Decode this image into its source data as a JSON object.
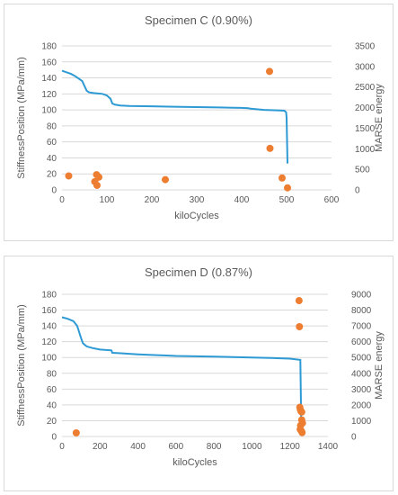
{
  "chart_data": [
    {
      "type": "line+scatter",
      "title": "Specimen C (0.90%)",
      "xlabel": "kiloCycles",
      "ylabel": "StiffnessPosition (MPa/mm)",
      "y2label": "MARSE energy",
      "xlim": [
        0,
        600
      ],
      "ylim": [
        0,
        180
      ],
      "y2lim": [
        0,
        3500
      ],
      "xticks": [
        "0",
        "100",
        "200",
        "300",
        "400",
        "500",
        "600"
      ],
      "yticks": [
        "0",
        "20",
        "40",
        "60",
        "80",
        "100",
        "120",
        "140",
        "160",
        "180"
      ],
      "y2ticks": [
        "0",
        "500",
        "1000",
        "1500",
        "2000",
        "2500",
        "3000",
        "3500"
      ],
      "grid": true,
      "series": [
        {
          "kind": "line",
          "axis": "y",
          "color": "#2e9ad4",
          "x": [
            0,
            10,
            20,
            30,
            45,
            50,
            55,
            60,
            70,
            80,
            90,
            100,
            108,
            112,
            118,
            130,
            150,
            200,
            250,
            300,
            350,
            400,
            415,
            420,
            450,
            480,
            495,
            497,
            499,
            500,
            502
          ],
          "y": [
            149,
            147,
            145,
            142,
            136,
            130,
            124,
            122,
            121,
            120.5,
            120,
            118,
            114,
            108,
            106.5,
            105.5,
            105,
            104.5,
            104,
            103.5,
            103,
            102.5,
            102,
            101.5,
            100,
            99.5,
            99,
            98,
            97,
            90,
            33
          ]
        },
        {
          "kind": "scatter",
          "axis": "y2",
          "color": "#ed7d31",
          "x": [
            15,
            73,
            78,
            77,
            82,
            230,
            462,
            463,
            490,
            502
          ],
          "y": [
            340,
            200,
            110,
            370,
            310,
            250,
            2880,
            1010,
            290,
            50
          ]
        }
      ]
    },
    {
      "type": "line+scatter",
      "title": "Specimen D (0.87%)",
      "xlabel": "kiloCycles",
      "ylabel": "StiffnessPosition (MPa/mm)",
      "y2label": "MARSE energy",
      "xlim": [
        0,
        1400
      ],
      "ylim": [
        0,
        180
      ],
      "y2lim": [
        0,
        9000
      ],
      "xticks": [
        "0",
        "200",
        "400",
        "600",
        "800",
        "1000",
        "1200",
        "1400"
      ],
      "yticks": [
        "0",
        "20",
        "40",
        "60",
        "80",
        "100",
        "120",
        "140",
        "160",
        "180"
      ],
      "y2ticks": [
        "0",
        "1000",
        "2000",
        "3000",
        "4000",
        "5000",
        "6000",
        "7000",
        "8000",
        "9000"
      ],
      "grid": true,
      "series": [
        {
          "kind": "line",
          "axis": "y",
          "color": "#2e9ad4",
          "x": [
            0,
            30,
            60,
            80,
            100,
            110,
            130,
            160,
            200,
            260,
            265,
            300,
            400,
            500,
            550,
            600,
            800,
            1000,
            1100,
            1200,
            1255,
            1260
          ],
          "y": [
            151,
            149,
            146,
            140,
            125,
            118,
            114,
            112,
            110,
            109,
            106,
            105.5,
            104,
            103,
            102.5,
            102,
            101,
            100,
            99.5,
            98.5,
            97,
            7
          ]
        },
        {
          "kind": "scatter",
          "axis": "y2",
          "color": "#ed7d31",
          "x": [
            75,
            1248,
            1250,
            1252,
            1255,
            1258,
            1262,
            1262,
            1266,
            1254,
            1260,
            1264,
            1256
          ],
          "y": [
            230,
            8600,
            6950,
            1850,
            1700,
            1600,
            1550,
            1050,
            850,
            450,
            350,
            250,
            700
          ]
        }
      ]
    }
  ]
}
